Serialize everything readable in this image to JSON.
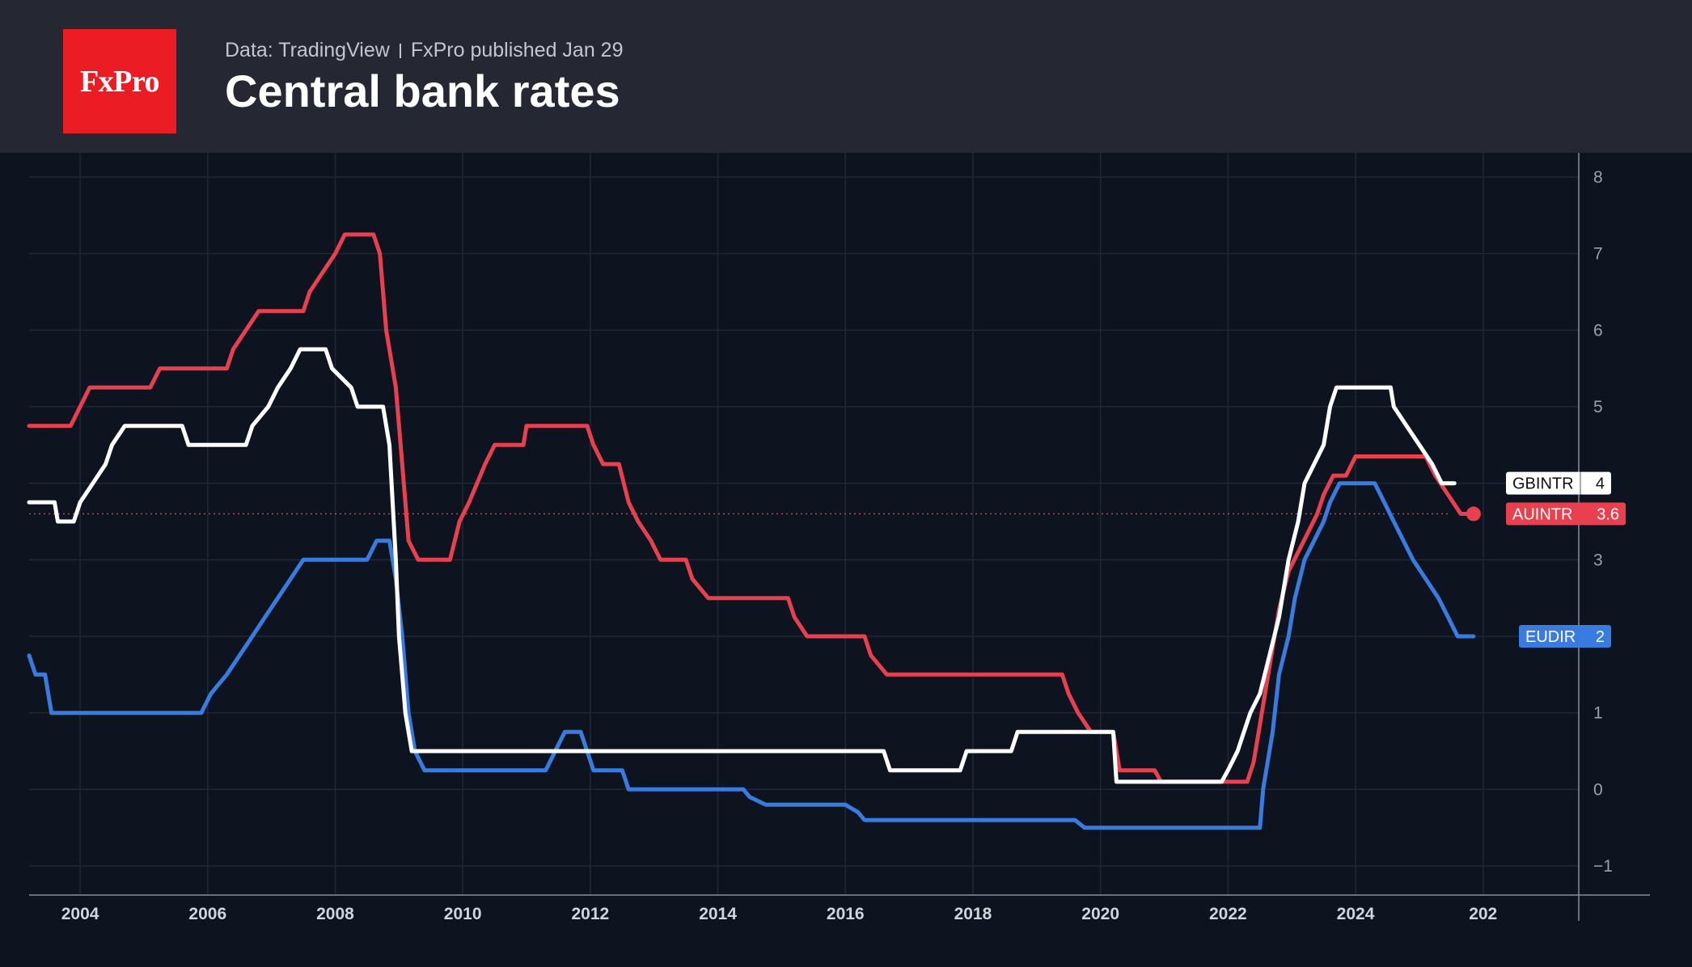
{
  "header": {
    "logo_text": "FxPro",
    "source": "Data: TradingView",
    "published": "FxPro published Jan 29",
    "title": "Central bank rates"
  },
  "chart_data": {
    "type": "line",
    "title": "Central bank rates",
    "xlabel": "",
    "ylabel": "",
    "xlim": [
      2003.2,
      2027.5
    ],
    "ylim": [
      -1.4,
      8.3
    ],
    "x_ticks": [
      "2004",
      "2006",
      "2008",
      "2010",
      "2012",
      "2014",
      "2016",
      "2018",
      "2020",
      "2022",
      "2024",
      "202"
    ],
    "y_ticks": [
      "8",
      "7",
      "6",
      "5",
      "4",
      "3",
      "2",
      "1",
      "0",
      "−1"
    ],
    "grid": true,
    "colors": {
      "GBINTR": "#ffffff",
      "AUINTR": "#e8404f",
      "EUDIR": "#3a7be0",
      "grid": "#1f2837",
      "axis": "#9aa0aa",
      "background": "#0d1420"
    },
    "series": [
      {
        "name": "GBINTR",
        "last_value": "4",
        "points": [
          [
            2003.2,
            3.75
          ],
          [
            2003.6,
            3.75
          ],
          [
            2003.65,
            3.5
          ],
          [
            2003.9,
            3.5
          ],
          [
            2004.0,
            3.75
          ],
          [
            2004.2,
            4.0
          ],
          [
            2004.4,
            4.25
          ],
          [
            2004.5,
            4.5
          ],
          [
            2004.7,
            4.75
          ],
          [
            2005.6,
            4.75
          ],
          [
            2005.7,
            4.5
          ],
          [
            2006.6,
            4.5
          ],
          [
            2006.7,
            4.75
          ],
          [
            2006.95,
            5.0
          ],
          [
            2007.1,
            5.25
          ],
          [
            2007.3,
            5.5
          ],
          [
            2007.45,
            5.75
          ],
          [
            2007.85,
            5.75
          ],
          [
            2007.95,
            5.5
          ],
          [
            2008.25,
            5.25
          ],
          [
            2008.35,
            5.0
          ],
          [
            2008.75,
            5.0
          ],
          [
            2008.85,
            4.5
          ],
          [
            2008.95,
            3.0
          ],
          [
            2009.0,
            2.0
          ],
          [
            2009.05,
            1.5
          ],
          [
            2009.1,
            1.0
          ],
          [
            2009.2,
            0.5
          ],
          [
            2016.6,
            0.5
          ],
          [
            2016.7,
            0.25
          ],
          [
            2017.8,
            0.25
          ],
          [
            2017.9,
            0.5
          ],
          [
            2018.6,
            0.5
          ],
          [
            2018.7,
            0.75
          ],
          [
            2020.2,
            0.75
          ],
          [
            2020.25,
            0.1
          ],
          [
            2021.9,
            0.1
          ],
          [
            2022.0,
            0.25
          ],
          [
            2022.15,
            0.5
          ],
          [
            2022.25,
            0.75
          ],
          [
            2022.35,
            1.0
          ],
          [
            2022.5,
            1.25
          ],
          [
            2022.65,
            1.75
          ],
          [
            2022.8,
            2.25
          ],
          [
            2022.95,
            3.0
          ],
          [
            2023.1,
            3.5
          ],
          [
            2023.2,
            4.0
          ],
          [
            2023.35,
            4.25
          ],
          [
            2023.5,
            4.5
          ],
          [
            2023.6,
            5.0
          ],
          [
            2023.7,
            5.25
          ],
          [
            2024.55,
            5.25
          ],
          [
            2024.6,
            5.0
          ],
          [
            2024.8,
            4.75
          ],
          [
            2025.0,
            4.5
          ],
          [
            2025.2,
            4.25
          ],
          [
            2025.35,
            4.0
          ],
          [
            2025.55,
            4.0
          ]
        ]
      },
      {
        "name": "AUINTR",
        "last_value": "3.6",
        "points": [
          [
            2003.2,
            4.75
          ],
          [
            2003.85,
            4.75
          ],
          [
            2004.0,
            5.0
          ],
          [
            2004.15,
            5.25
          ],
          [
            2005.1,
            5.25
          ],
          [
            2005.25,
            5.5
          ],
          [
            2006.3,
            5.5
          ],
          [
            2006.4,
            5.75
          ],
          [
            2006.6,
            6.0
          ],
          [
            2006.8,
            6.25
          ],
          [
            2007.5,
            6.25
          ],
          [
            2007.6,
            6.5
          ],
          [
            2007.8,
            6.75
          ],
          [
            2008.0,
            7.0
          ],
          [
            2008.15,
            7.25
          ],
          [
            2008.6,
            7.25
          ],
          [
            2008.7,
            7.0
          ],
          [
            2008.8,
            6.0
          ],
          [
            2008.95,
            5.25
          ],
          [
            2009.05,
            4.25
          ],
          [
            2009.15,
            3.25
          ],
          [
            2009.3,
            3.0
          ],
          [
            2009.8,
            3.0
          ],
          [
            2009.95,
            3.5
          ],
          [
            2010.1,
            3.75
          ],
          [
            2010.35,
            4.25
          ],
          [
            2010.5,
            4.5
          ],
          [
            2010.95,
            4.5
          ],
          [
            2011.0,
            4.75
          ],
          [
            2011.95,
            4.75
          ],
          [
            2012.05,
            4.5
          ],
          [
            2012.2,
            4.25
          ],
          [
            2012.45,
            4.25
          ],
          [
            2012.6,
            3.75
          ],
          [
            2012.75,
            3.5
          ],
          [
            2012.95,
            3.25
          ],
          [
            2013.1,
            3.0
          ],
          [
            2013.5,
            3.0
          ],
          [
            2013.6,
            2.75
          ],
          [
            2013.85,
            2.5
          ],
          [
            2015.1,
            2.5
          ],
          [
            2015.2,
            2.25
          ],
          [
            2015.4,
            2.0
          ],
          [
            2016.3,
            2.0
          ],
          [
            2016.4,
            1.75
          ],
          [
            2016.65,
            1.5
          ],
          [
            2019.4,
            1.5
          ],
          [
            2019.5,
            1.25
          ],
          [
            2019.65,
            1.0
          ],
          [
            2019.85,
            0.75
          ],
          [
            2020.2,
            0.75
          ],
          [
            2020.3,
            0.25
          ],
          [
            2020.85,
            0.25
          ],
          [
            2020.95,
            0.1
          ],
          [
            2022.3,
            0.1
          ],
          [
            2022.4,
            0.35
          ],
          [
            2022.5,
            0.85
          ],
          [
            2022.6,
            1.35
          ],
          [
            2022.7,
            1.85
          ],
          [
            2022.8,
            2.35
          ],
          [
            2022.95,
            2.85
          ],
          [
            2023.1,
            3.1
          ],
          [
            2023.25,
            3.35
          ],
          [
            2023.4,
            3.6
          ],
          [
            2023.5,
            3.85
          ],
          [
            2023.65,
            4.1
          ],
          [
            2023.85,
            4.1
          ],
          [
            2024.0,
            4.35
          ],
          [
            2025.1,
            4.35
          ],
          [
            2025.25,
            4.1
          ],
          [
            2025.45,
            3.85
          ],
          [
            2025.65,
            3.6
          ],
          [
            2025.85,
            3.6
          ]
        ]
      },
      {
        "name": "EUDIR",
        "last_value": "2",
        "points": [
          [
            2003.2,
            1.75
          ],
          [
            2003.3,
            1.5
          ],
          [
            2003.45,
            1.5
          ],
          [
            2003.55,
            1.0
          ],
          [
            2005.9,
            1.0
          ],
          [
            2006.05,
            1.25
          ],
          [
            2006.3,
            1.5
          ],
          [
            2006.5,
            1.75
          ],
          [
            2006.7,
            2.0
          ],
          [
            2006.9,
            2.25
          ],
          [
            2007.1,
            2.5
          ],
          [
            2007.3,
            2.75
          ],
          [
            2007.5,
            3.0
          ],
          [
            2008.5,
            3.0
          ],
          [
            2008.65,
            3.25
          ],
          [
            2008.85,
            3.25
          ],
          [
            2008.95,
            2.75
          ],
          [
            2009.05,
            2.0
          ],
          [
            2009.15,
            1.0
          ],
          [
            2009.25,
            0.5
          ],
          [
            2009.4,
            0.25
          ],
          [
            2011.3,
            0.25
          ],
          [
            2011.45,
            0.5
          ],
          [
            2011.6,
            0.75
          ],
          [
            2011.85,
            0.75
          ],
          [
            2011.95,
            0.5
          ],
          [
            2012.05,
            0.25
          ],
          [
            2012.5,
            0.25
          ],
          [
            2012.6,
            0.0
          ],
          [
            2014.4,
            0.0
          ],
          [
            2014.5,
            -0.1
          ],
          [
            2014.75,
            -0.2
          ],
          [
            2016.0,
            -0.2
          ],
          [
            2016.2,
            -0.3
          ],
          [
            2016.3,
            -0.4
          ],
          [
            2019.6,
            -0.4
          ],
          [
            2019.75,
            -0.5
          ],
          [
            2022.5,
            -0.5
          ],
          [
            2022.55,
            0.0
          ],
          [
            2022.7,
            0.75
          ],
          [
            2022.8,
            1.5
          ],
          [
            2022.95,
            2.0
          ],
          [
            2023.05,
            2.5
          ],
          [
            2023.2,
            3.0
          ],
          [
            2023.35,
            3.25
          ],
          [
            2023.5,
            3.5
          ],
          [
            2023.6,
            3.75
          ],
          [
            2023.75,
            4.0
          ],
          [
            2024.3,
            4.0
          ],
          [
            2024.45,
            3.75
          ],
          [
            2024.6,
            3.5
          ],
          [
            2024.75,
            3.25
          ],
          [
            2024.9,
            3.0
          ],
          [
            2025.1,
            2.75
          ],
          [
            2025.3,
            2.5
          ],
          [
            2025.45,
            2.25
          ],
          [
            2025.6,
            2.0
          ],
          [
            2025.85,
            2.0
          ]
        ]
      }
    ],
    "reference_line": {
      "series": "AUINTR",
      "value": 3.6
    }
  }
}
